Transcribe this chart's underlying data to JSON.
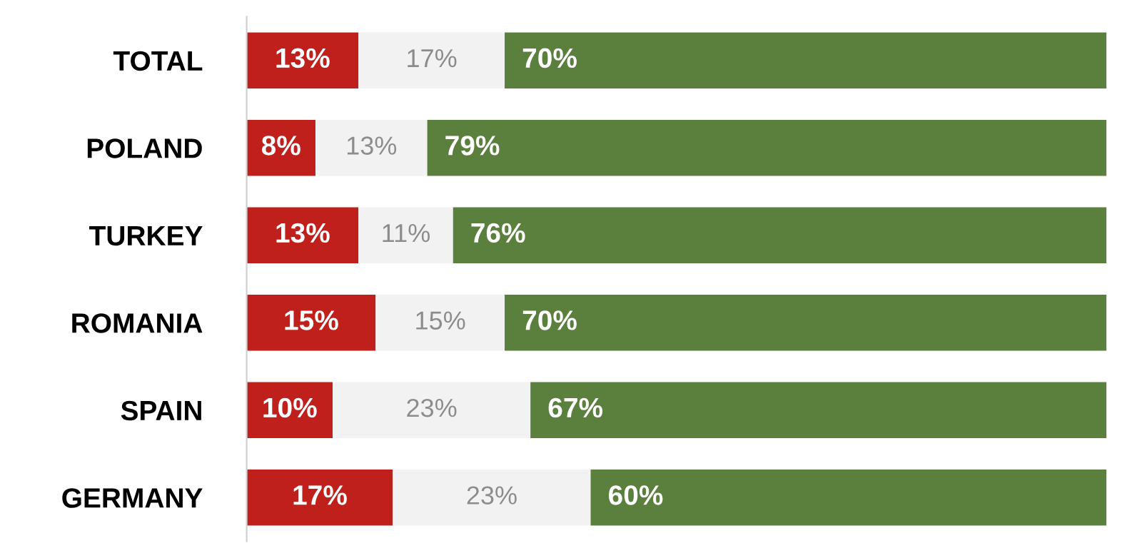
{
  "chart_data": {
    "type": "bar",
    "orientation": "horizontal",
    "stacked": true,
    "categories": [
      "TOTAL",
      "POLAND",
      "TURKEY",
      "ROMANIA",
      "SPAIN",
      "GERMANY"
    ],
    "series": [
      {
        "color": "#c0201c",
        "values": [
          13,
          8,
          13,
          15,
          10,
          17
        ],
        "value_labels": [
          "13%",
          "8%",
          "13%",
          "15%",
          "10%",
          "17%"
        ]
      },
      {
        "color": "#f2f2f2",
        "values": [
          17,
          13,
          11,
          15,
          23,
          23
        ],
        "value_labels": [
          "17%",
          "13%",
          "11%",
          "15%",
          "23%",
          "23%"
        ]
      },
      {
        "color": "#5b7f3c",
        "values": [
          70,
          79,
          76,
          70,
          67,
          60
        ],
        "value_labels": [
          "70%",
          "79%",
          "76%",
          "70%",
          "67%",
          "60%"
        ]
      }
    ],
    "xlim": [
      0,
      100
    ],
    "tick_labels": "y",
    "grid": false,
    "legend": false
  }
}
